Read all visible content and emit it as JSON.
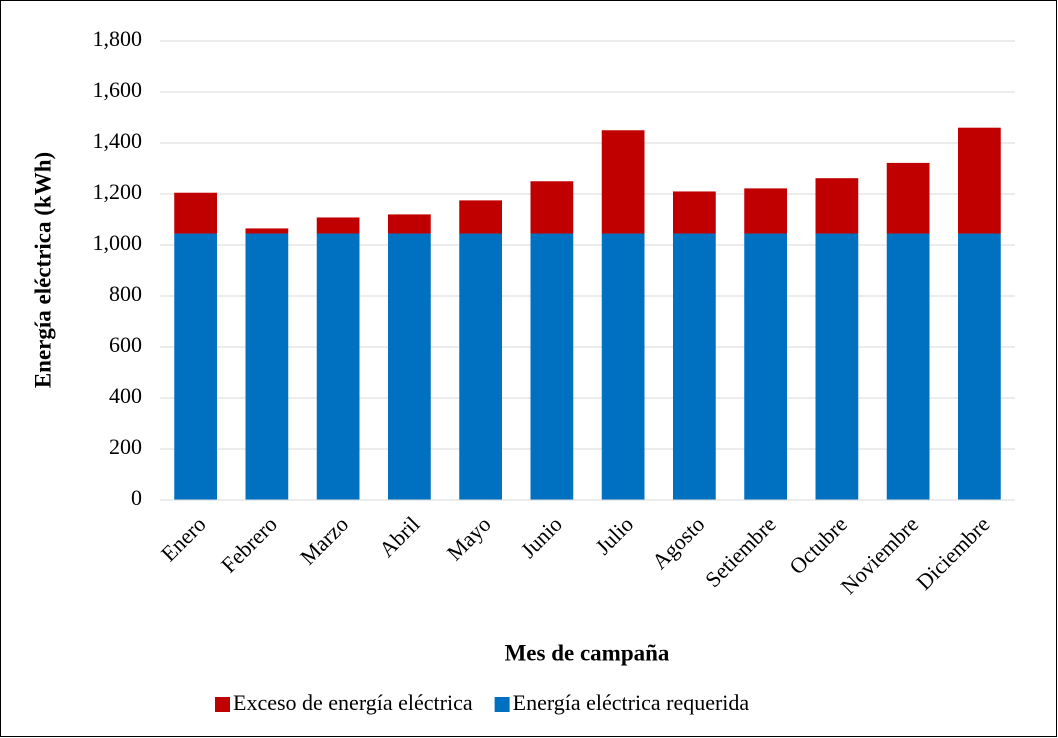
{
  "chart_data": {
    "type": "stacked_bar",
    "x_label": "Mes de campaña",
    "y_label": "Energía eléctrica (kWh)",
    "categories": [
      "Enero",
      "Febrero",
      "Marzo",
      "Abril",
      "Mayo",
      "Junio",
      "Julio",
      "Agosto",
      "Setiembre",
      "Octubre",
      "Noviembre",
      "Diciembre"
    ],
    "series": [
      {
        "name": "Energía eléctrica requerida",
        "color": "#0070c0",
        "values": [
          1045,
          1045,
          1045,
          1045,
          1045,
          1045,
          1045,
          1045,
          1045,
          1045,
          1045,
          1045
        ]
      },
      {
        "name": "Exceso de energía eléctrica",
        "color": "#c00000",
        "values": [
          160,
          20,
          63,
          75,
          130,
          205,
          405,
          165,
          177,
          217,
          277,
          415
        ]
      }
    ],
    "ylim": [
      0,
      1800
    ],
    "yticks": [
      0,
      200,
      400,
      600,
      800,
      {
        "value": 1000,
        "label": "1,000"
      },
      {
        "value": 1200,
        "label": "1,200"
      },
      {
        "value": 1400,
        "label": "1,400"
      },
      {
        "value": 1600,
        "label": "1,600"
      },
      {
        "value": 1800,
        "label": "1,800"
      }
    ],
    "grid": true,
    "legend": "bottom"
  }
}
